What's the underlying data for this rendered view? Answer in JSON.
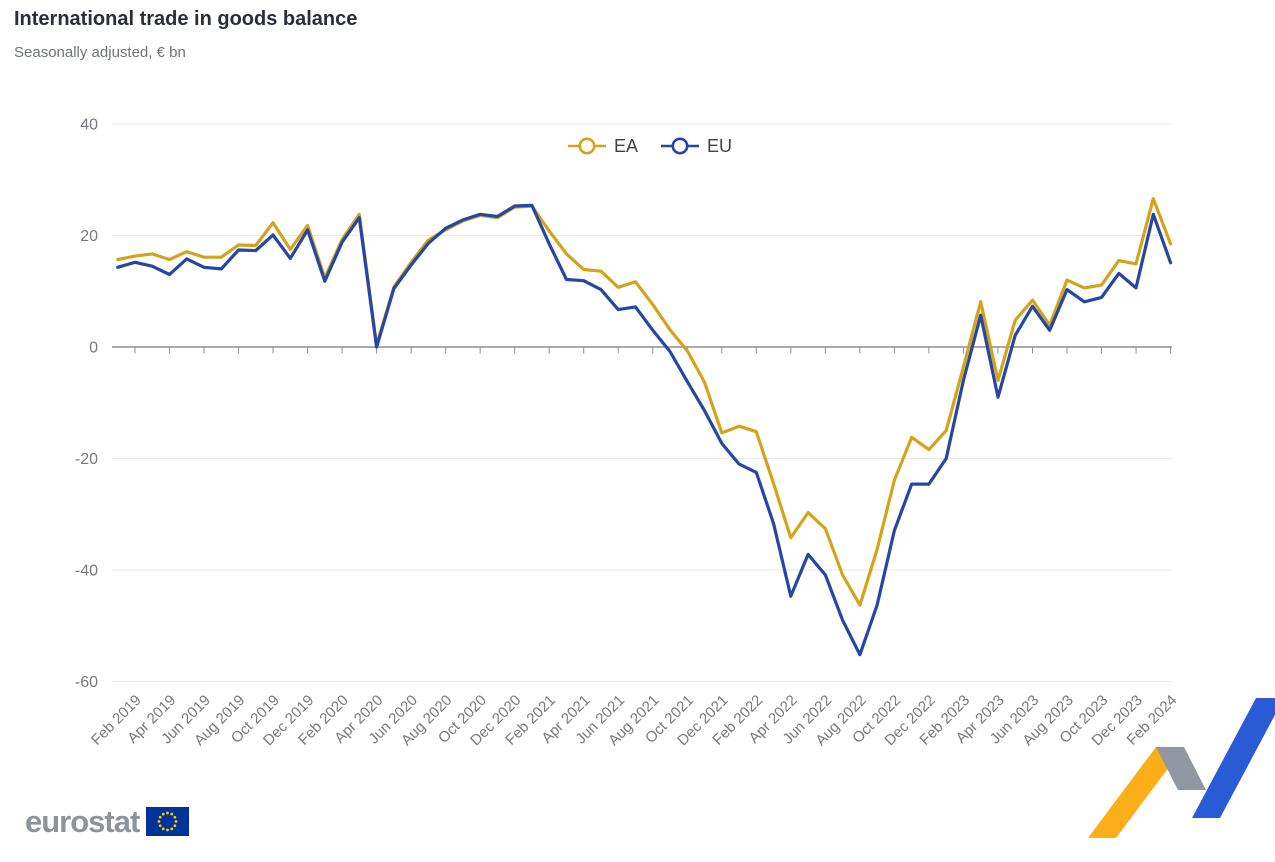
{
  "header": {
    "title": "International trade in goods balance",
    "subtitle": "Seasonally adjusted, € bn"
  },
  "chart_data": {
    "type": "line",
    "title": "International trade in goods balance",
    "subtitle": "Seasonally adjusted, € bn",
    "ylabel": "",
    "xlabel": "",
    "ylim": [
      -60,
      40
    ],
    "yticks": [
      40,
      20,
      0,
      -20,
      -40,
      -60
    ],
    "grid": true,
    "legend_position": "top-center",
    "x": [
      "Jan 2019",
      "Feb 2019",
      "Mar 2019",
      "Apr 2019",
      "May 2019",
      "Jun 2019",
      "Jul 2019",
      "Aug 2019",
      "Sep 2019",
      "Oct 2019",
      "Nov 2019",
      "Dec 2019",
      "Jan 2020",
      "Feb 2020",
      "Mar 2020",
      "Apr 2020",
      "May 2020",
      "Jun 2020",
      "Jul 2020",
      "Aug 2020",
      "Sep 2020",
      "Oct 2020",
      "Nov 2020",
      "Dec 2020",
      "Jan 2021",
      "Feb 2021",
      "Mar 2021",
      "Apr 2021",
      "May 2021",
      "Jun 2021",
      "Jul 2021",
      "Aug 2021",
      "Sep 2021",
      "Oct 2021",
      "Nov 2021",
      "Dec 2021",
      "Jan 2022",
      "Feb 2022",
      "Mar 2022",
      "Apr 2022",
      "May 2022",
      "Jun 2022",
      "Jul 2022",
      "Aug 2022",
      "Sep 2022",
      "Oct 2022",
      "Nov 2022",
      "Dec 2022",
      "Jan 2023",
      "Feb 2023",
      "Mar 2023",
      "Apr 2023",
      "May 2023",
      "Jun 2023",
      "Jul 2023",
      "Aug 2023",
      "Sep 2023",
      "Oct 2023",
      "Nov 2023",
      "Dec 2023",
      "Jan 2024",
      "Feb 2024"
    ],
    "x_tick_labels": [
      "Feb 2019",
      "Apr 2019",
      "Jun 2019",
      "Aug 2019",
      "Oct 2019",
      "Dec 2019",
      "Feb 2020",
      "Apr 2020",
      "Jun 2020",
      "Aug 2020",
      "Oct 2020",
      "Dec 2020",
      "Feb 2021",
      "Apr 2021",
      "Jun 2021",
      "Aug 2021",
      "Oct 2021",
      "Dec 2021",
      "Feb 2022",
      "Apr 2022",
      "Jun 2022",
      "Aug 2022",
      "Oct 2022",
      "Dec 2022",
      "Feb 2023",
      "Apr 2023",
      "Jun 2023",
      "Aug 2023",
      "Oct 2023",
      "Dec 2023",
      "Feb 2024"
    ],
    "series": [
      {
        "name": "EA",
        "color": "#D3A41B",
        "values": [
          15.7,
          16.3,
          16.7,
          15.7,
          17.1,
          16.1,
          16.1,
          18.3,
          18.2,
          22.3,
          17.5,
          21.8,
          12.4,
          19.3,
          23.8,
          0.4,
          10.8,
          15.2,
          19.2,
          21.0,
          22.6,
          23.6,
          23.2,
          25.1,
          25.3,
          20.8,
          16.7,
          13.9,
          13.6,
          10.7,
          11.7,
          7.6,
          3.1,
          -0.7,
          -6.3,
          -15.4,
          -14.2,
          -15.2,
          -24.5,
          -34.2,
          -29.7,
          -32.6,
          -40.9,
          -46.3,
          -36.3,
          -23.9,
          -16.2,
          -18.4,
          -15.0,
          -3.6,
          8.1,
          -6.0,
          4.8,
          8.4,
          3.9,
          12.0,
          10.6,
          11.1,
          15.5,
          14.9,
          26.6,
          18.5
        ]
      },
      {
        "name": "EU",
        "color": "#2646A5",
        "values": [
          14.3,
          15.2,
          14.5,
          13.0,
          15.8,
          14.3,
          14.0,
          17.4,
          17.3,
          20.1,
          15.9,
          21.0,
          11.8,
          18.8,
          23.2,
          0.0,
          10.5,
          14.7,
          18.6,
          21.3,
          22.8,
          23.8,
          23.4,
          25.3,
          25.4,
          18.5,
          12.1,
          11.9,
          10.3,
          6.7,
          7.2,
          3.0,
          -0.8,
          -6.2,
          -11.4,
          -17.3,
          -21.0,
          -22.5,
          -31.7,
          -44.7,
          -37.2,
          -40.9,
          -49.0,
          -55.2,
          -46.3,
          -32.9,
          -24.6,
          -24.6,
          -20.0,
          -6.0,
          5.7,
          -9.0,
          2.1,
          7.3,
          3.0,
          10.3,
          8.1,
          8.9,
          13.2,
          10.6,
          23.8,
          15.1
        ]
      }
    ]
  },
  "footer": {
    "logo_text": "eurostat"
  },
  "colors": {
    "grid": "#E9E9E9",
    "axis": "#8E8E8E",
    "tick_label": "#77797E",
    "legend_text": "#3F4247",
    "title": "#2B2E38",
    "subtitle": "#6F7379",
    "logo_gray": "#8D939B",
    "flag_blue": "#003399",
    "flag_stars": "#FFCC00",
    "ribbon_yellow": "#FBAE17",
    "ribbon_gray": "#9097A0",
    "ribbon_blue": "#2A5BD7"
  }
}
